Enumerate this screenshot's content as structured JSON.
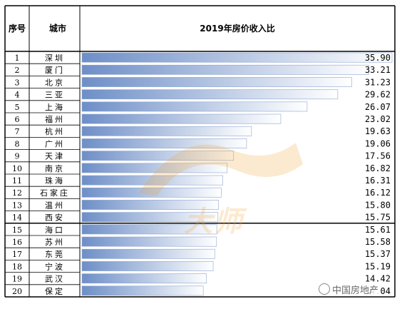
{
  "table": {
    "header_index": "序号",
    "header_city": "城市",
    "title": "2019年房价收入比"
  },
  "watermark_text": "大师",
  "wechat_source": "中国房地产",
  "colors": {
    "bar_start": "#6d8ec7",
    "bar_end": "#ffffff",
    "grid": "#000000"
  },
  "chart_data": {
    "type": "bar",
    "orientation": "horizontal",
    "title": "2019年房价收入比",
    "categories": [
      "深圳",
      "厦门",
      "北京",
      "三亚",
      "上海",
      "福州",
      "杭州",
      "广州",
      "天津",
      "南京",
      "珠海",
      "石家庄",
      "温州",
      "西安",
      "海口",
      "苏州",
      "东莞",
      "宁波",
      "武汉",
      "保定"
    ],
    "ranks": [
      "1",
      "2",
      "3",
      "4",
      "5",
      "6",
      "7",
      "8",
      "9",
      "10",
      "11",
      "12",
      "13",
      "14",
      "15",
      "16",
      "17",
      "18",
      "19",
      "20"
    ],
    "values": [
      35.9,
      33.21,
      31.23,
      29.62,
      26.07,
      23.02,
      19.63,
      19.06,
      17.56,
      16.82,
      16.31,
      16.12,
      15.8,
      15.75,
      15.61,
      15.58,
      15.37,
      15.19,
      14.42,
      14.04
    ],
    "labels": [
      "35.90",
      "33.21",
      "31.23",
      "29.62",
      "26.07",
      "23.02",
      "19.63",
      "19.06",
      "17.56",
      "16.82",
      "16.31",
      "16.12",
      "15.80",
      "15.75",
      "15.61",
      "15.58",
      "15.37",
      "15.19",
      "14.42",
      "14.04"
    ],
    "xlim": [
      0,
      35.9
    ],
    "legend": "none",
    "grid": false
  }
}
